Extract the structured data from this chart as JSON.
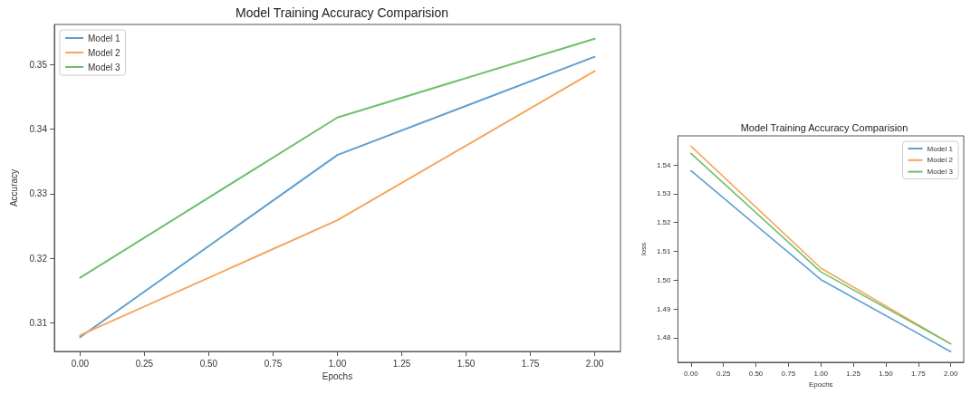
{
  "chart_data": [
    {
      "type": "line",
      "title": "Model Training Accuracy Comparision",
      "xlabel": "Epochs",
      "ylabel": "Accuracy",
      "x": [
        0,
        1,
        2
      ],
      "series": [
        {
          "name": "Model 1",
          "color": "#5f9fd0",
          "values": [
            0.3078,
            0.336,
            0.3512
          ]
        },
        {
          "name": "Model 2",
          "color": "#f6a55c",
          "values": [
            0.3081,
            0.3259,
            0.349
          ]
        },
        {
          "name": "Model 3",
          "color": "#6cc06c",
          "values": [
            0.317,
            0.3418,
            0.354
          ]
        }
      ],
      "xlim": [
        -0.1,
        2.1
      ],
      "ylim": [
        0.3056,
        0.3562
      ],
      "xticks": [
        {
          "value": 0,
          "label": "0.00"
        },
        {
          "value": 0.25,
          "label": "0.25"
        },
        {
          "value": 0.5,
          "label": "0.50"
        },
        {
          "value": 0.75,
          "label": "0.75"
        },
        {
          "value": 1,
          "label": "1.00"
        },
        {
          "value": 1.25,
          "label": "1.25"
        },
        {
          "value": 1.5,
          "label": "1.50"
        },
        {
          "value": 1.75,
          "label": "1.75"
        },
        {
          "value": 2,
          "label": "2.00"
        }
      ],
      "yticks": [
        0.31,
        0.32,
        0.33,
        0.34,
        0.35
      ],
      "grid": false,
      "legend": "top left",
      "marker": "none",
      "line_style": "solid"
    },
    {
      "type": "line",
      "title": "Model Training Accuracy Comparision",
      "xlabel": "Epochs",
      "ylabel": "loss",
      "x": [
        0,
        1,
        2
      ],
      "series": [
        {
          "name": "Model 1",
          "color": "#5f9fd0",
          "values": [
            1.538,
            1.5002,
            1.4752
          ]
        },
        {
          "name": "Model 2",
          "color": "#f6a55c",
          "values": [
            1.5465,
            1.5042,
            1.4779
          ]
        },
        {
          "name": "Model 3",
          "color": "#6cc06c",
          "values": [
            1.544,
            1.5029,
            1.4779
          ]
        }
      ],
      "xlim": [
        -0.1,
        2.1
      ],
      "ylim": [
        1.4715,
        1.5501
      ],
      "xticks": [
        {
          "value": 0,
          "label": "0.00"
        },
        {
          "value": 0.25,
          "label": "0.25"
        },
        {
          "value": 0.5,
          "label": "0.50"
        },
        {
          "value": 0.75,
          "label": "0.75"
        },
        {
          "value": 1,
          "label": "1.00"
        },
        {
          "value": 1.25,
          "label": "1.25"
        },
        {
          "value": 1.5,
          "label": "1.50"
        },
        {
          "value": 1.75,
          "label": "1.75"
        },
        {
          "value": 2,
          "label": "2.00"
        }
      ],
      "yticks": [
        1.48,
        1.49,
        {
          "value": 1.5,
          "label": "1.50"
        },
        1.51,
        1.52,
        1.53,
        1.54
      ],
      "grid": false,
      "legend": "top right",
      "marker": "none",
      "line_style": "solid"
    }
  ]
}
